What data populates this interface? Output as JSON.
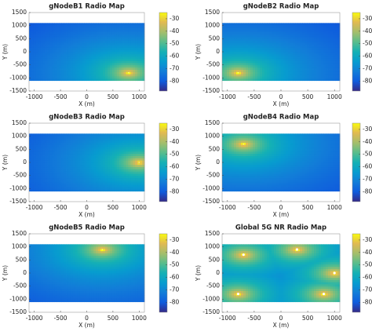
{
  "chart_data": [
    {
      "type": "heatmap",
      "title": "gNodeB1 Radio Map",
      "xlabel": "X (m)",
      "ylabel": "Y (m)",
      "xlim": [
        -1100,
        1100
      ],
      "ylim": [
        -1500,
        1500
      ],
      "xticks": [
        -1000,
        -500,
        0,
        500,
        1000
      ],
      "yticks": [
        -1500,
        -1000,
        -500,
        0,
        500,
        1000,
        1500
      ],
      "map_extent": [
        -1100,
        1100
      ],
      "clim": [
        -88,
        -25
      ],
      "cticks": [
        -80,
        -70,
        -60,
        -50,
        -40,
        -30
      ],
      "sources": {
        "x": [
          800
        ],
        "y": [
          -800
        ]
      },
      "markers": false
    },
    {
      "type": "heatmap",
      "title": "gNodeB2 Radio Map",
      "xlabel": "X (m)",
      "ylabel": "Y (m)",
      "xlim": [
        -1100,
        1100
      ],
      "ylim": [
        -1500,
        1500
      ],
      "xticks": [
        -1000,
        -500,
        0,
        500,
        1000
      ],
      "yticks": [
        -1500,
        -1000,
        -500,
        0,
        500,
        1000,
        1500
      ],
      "map_extent": [
        -1100,
        1100
      ],
      "clim": [
        -88,
        -25
      ],
      "cticks": [
        -80,
        -70,
        -60,
        -50,
        -40,
        -30
      ],
      "sources": {
        "x": [
          -800
        ],
        "y": [
          -800
        ]
      },
      "markers": false
    },
    {
      "type": "heatmap",
      "title": "gNodeB3 Radio Map",
      "xlabel": "X (m)",
      "ylabel": "Y (m)",
      "xlim": [
        -1100,
        1100
      ],
      "ylim": [
        -1500,
        1500
      ],
      "xticks": [
        -1000,
        -500,
        0,
        500,
        1000
      ],
      "yticks": [
        -1500,
        -1000,
        -500,
        0,
        500,
        1000,
        1500
      ],
      "map_extent": [
        -1100,
        1100
      ],
      "clim": [
        -88,
        -25
      ],
      "cticks": [
        -80,
        -70,
        -60,
        -50,
        -40,
        -30
      ],
      "sources": {
        "x": [
          1000
        ],
        "y": [
          0
        ]
      },
      "markers": false
    },
    {
      "type": "heatmap",
      "title": "gNodeB4 Radio Map",
      "xlabel": "X (m)",
      "ylabel": "Y (m)",
      "xlim": [
        -1100,
        1100
      ],
      "ylim": [
        -1500,
        1500
      ],
      "xticks": [
        -1000,
        -500,
        0,
        500,
        1000
      ],
      "yticks": [
        -1500,
        -1000,
        -500,
        0,
        500,
        1000,
        1500
      ],
      "map_extent": [
        -1100,
        1100
      ],
      "clim": [
        -88,
        -25
      ],
      "cticks": [
        -80,
        -70,
        -60,
        -50,
        -40,
        -30
      ],
      "sources": {
        "x": [
          -700
        ],
        "y": [
          700
        ]
      },
      "markers": false
    },
    {
      "type": "heatmap",
      "title": "gNodeB5 Radio Map",
      "xlabel": "X (m)",
      "ylabel": "Y (m)",
      "xlim": [
        -1100,
        1100
      ],
      "ylim": [
        -1500,
        1500
      ],
      "xticks": [
        -1000,
        -500,
        0,
        500,
        1000
      ],
      "yticks": [
        -1500,
        -1000,
        -500,
        0,
        500,
        1000,
        1500
      ],
      "map_extent": [
        -1100,
        1100
      ],
      "clim": [
        -88,
        -25
      ],
      "cticks": [
        -80,
        -70,
        -60,
        -50,
        -40,
        -30
      ],
      "sources": {
        "x": [
          300
        ],
        "y": [
          900
        ]
      },
      "markers": false
    },
    {
      "type": "heatmap",
      "title": "Global 5G NR Radio Map",
      "xlabel": "X (m)",
      "ylabel": "Y (m)",
      "xlim": [
        -1100,
        1100
      ],
      "ylim": [
        -1500,
        1500
      ],
      "xticks": [
        -1000,
        -500,
        0,
        500,
        1000
      ],
      "yticks": [
        -1500,
        -1000,
        -500,
        0,
        500,
        1000,
        1500
      ],
      "map_extent": [
        -1100,
        1100
      ],
      "clim": [
        -88,
        -25
      ],
      "cticks": [
        -80,
        -70,
        -60,
        -50,
        -40,
        -30
      ],
      "sources": {
        "x": [
          800,
          -800,
          1000,
          -700,
          300
        ],
        "y": [
          -800,
          -800,
          0,
          700,
          900
        ]
      },
      "markers": true
    }
  ],
  "colormap": [
    "#352a87",
    "#0f5cdd",
    "#127dd8",
    "#079ccf",
    "#15b1b4",
    "#59bd8c",
    "#a5be6b",
    "#e1b952",
    "#f9fb0e"
  ]
}
